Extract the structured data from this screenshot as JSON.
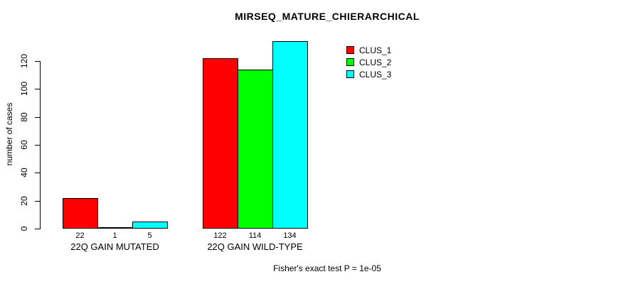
{
  "title": "MIRSEQ_MATURE_CHIERARCHICAL",
  "footnote": "Fisher's exact test P = 1e-05",
  "chart_data": {
    "type": "bar",
    "title": "MIRSEQ_MATURE_CHIERARCHICAL",
    "categories": [
      "22Q GAIN MUTATED",
      "22Q GAIN WILD-TYPE"
    ],
    "series": [
      {
        "name": "CLUS_1",
        "color": "#ff0000",
        "values": [
          22,
          122
        ]
      },
      {
        "name": "CLUS_2",
        "color": "#00ff00",
        "values": [
          1,
          114
        ]
      },
      {
        "name": "CLUS_3",
        "color": "#00ffff",
        "values": [
          5,
          134
        ]
      }
    ],
    "bar_value_labels": [
      [
        "22",
        "1",
        "5"
      ],
      [
        "122",
        "114",
        "134"
      ]
    ],
    "xlabel": "",
    "ylabel": "number of cases",
    "yticks": [
      0,
      20,
      40,
      60,
      80,
      100,
      120
    ],
    "ylim": [
      0,
      134
    ],
    "grid": false,
    "legend_position": "top-right",
    "annotation": "Fisher's exact test P = 1e-05"
  },
  "colors": {
    "background": "#ffffff",
    "axis": "#000000",
    "text": "#000000"
  }
}
